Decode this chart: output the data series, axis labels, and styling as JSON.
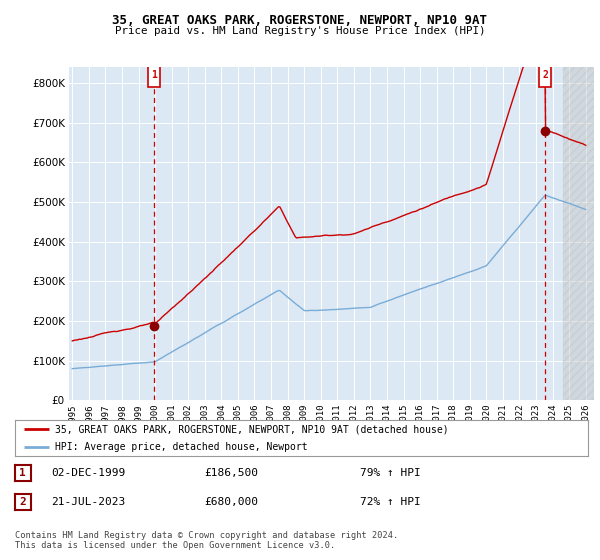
{
  "title": "35, GREAT OAKS PARK, ROGERSTONE, NEWPORT, NP10 9AT",
  "subtitle": "Price paid vs. HM Land Registry's House Price Index (HPI)",
  "legend_line1": "35, GREAT OAKS PARK, ROGERSTONE, NEWPORT, NP10 9AT (detached house)",
  "legend_line2": "HPI: Average price, detached house, Newport",
  "sale1_date": "02-DEC-1999",
  "sale1_price": "£186,500",
  "sale1_hpi": "79% ↑ HPI",
  "sale2_date": "21-JUL-2023",
  "sale2_price": "£680,000",
  "sale2_hpi": "72% ↑ HPI",
  "copyright": "Contains HM Land Registry data © Crown copyright and database right 2024.\nThis data is licensed under the Open Government Licence v3.0.",
  "property_color": "#cc0000",
  "hpi_color": "#7aacd6",
  "sale_marker_color": "#8b0000",
  "dashed_line_color": "#cc0000",
  "plot_bg_color": "#dce9f5",
  "background_color": "#ffffff",
  "grid_color": "#ffffff",
  "ylim": [
    0,
    840000
  ],
  "yticks": [
    0,
    100000,
    200000,
    300000,
    400000,
    500000,
    600000,
    700000,
    800000
  ],
  "sale1_x": 1999.92,
  "sale1_y": 186500,
  "sale2_x": 2023.55,
  "sale2_y": 680000,
  "xmin": 1995,
  "xmax": 2026
}
